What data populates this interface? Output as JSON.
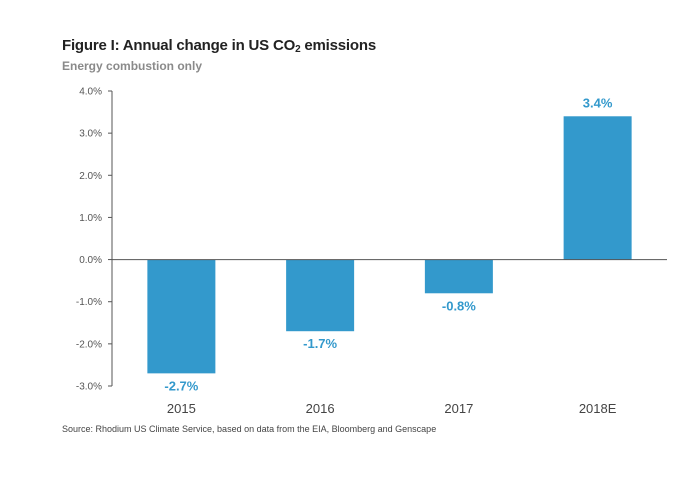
{
  "header": {
    "title_prefix": "Figure I: Annual change in US CO",
    "title_sub": "2",
    "title_suffix": " emissions",
    "subtitle": "Energy combustion only"
  },
  "footer": {
    "source": "Source: Rhodium US Climate Service, based on data from the EIA, Bloomberg and Genscape"
  },
  "colors": {
    "bar": "#3399cc",
    "label": "#3399cc",
    "axis": "#555555",
    "tick_text": "#555555"
  },
  "chart_data": {
    "type": "bar",
    "title": "Figure I: Annual change in US CO2 emissions",
    "subtitle": "Energy combustion only",
    "categories": [
      "2015",
      "2016",
      "2017",
      "2018E"
    ],
    "values": [
      -2.7,
      -1.7,
      -0.8,
      3.4
    ],
    "data_labels": [
      "-2.7%",
      "-1.7%",
      "-0.8%",
      "3.4%"
    ],
    "yticks": [
      4.0,
      3.0,
      2.0,
      1.0,
      0.0,
      -1.0,
      -2.0,
      -3.0
    ],
    "ytick_labels": [
      "4.0%",
      "3.0%",
      "2.0%",
      "1.0%",
      "0.0%",
      "-1.0%",
      "-2.0%",
      "-3.0%"
    ],
    "ylim": [
      -3.0,
      4.0
    ],
    "xlabel": "",
    "ylabel": "",
    "grid": false
  }
}
